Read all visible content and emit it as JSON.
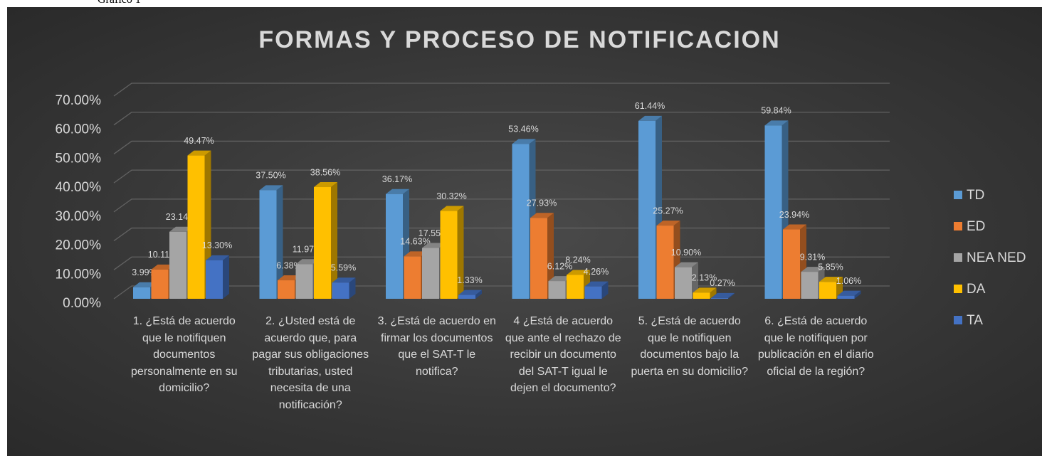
{
  "caption": "Gráfico 1",
  "chart_data": {
    "type": "bar3d",
    "title": "FORMAS Y PROCESO DE NOTIFICACION",
    "categories": [
      "1. ¿Está de acuerdo que le notifiquen documentos personalmente en su domicilio?",
      "2. ¿Usted está de acuerdo que, para pagar sus obligaciones tributarias, usted necesita de una notificación?",
      "3. ¿Está de acuerdo en firmar los documentos que el SAT-T le notifica?",
      "4 ¿Está de acuerdo que ante el rechazo de recibir un documento del SAT-T igual le dejen el documento?",
      "5. ¿Está de acuerdo que le notifiquen documentos bajo la puerta en su domicilio?",
      "6. ¿Está de acuerdo que le notifiquen por publicación en el diario oficial de la región?"
    ],
    "series": [
      {
        "name": "TD",
        "color": "#5b9bd5",
        "values": [
          3.99,
          37.5,
          36.17,
          53.46,
          61.44,
          59.84
        ],
        "value_labels": [
          "3.99%",
          "37.50%",
          "36.17%",
          "53.46%",
          "61.44%",
          "59.84%"
        ]
      },
      {
        "name": "ED",
        "color": "#ed7d31",
        "values": [
          10.11,
          6.38,
          14.63,
          27.93,
          25.27,
          23.94
        ],
        "value_labels": [
          "10.11%",
          "6.38%",
          "14.63%",
          "27.93%",
          "25.27%",
          "23.94%"
        ]
      },
      {
        "name": "NEA NED",
        "color": "#a5a5a5",
        "values": [
          23.14,
          11.97,
          17.55,
          6.12,
          10.9,
          9.31
        ],
        "value_labels": [
          "23.14%",
          "11.97%",
          "17.55%",
          "6.12%",
          "10.90%",
          "9.31%"
        ]
      },
      {
        "name": "DA",
        "color": "#ffc000",
        "values": [
          49.47,
          38.56,
          30.32,
          8.24,
          2.13,
          5.85
        ],
        "value_labels": [
          "49.47%",
          "38.56%",
          "30.32%",
          "8.24%",
          "2.13%",
          "5.85%"
        ]
      },
      {
        "name": "TA",
        "color": "#4472c4",
        "values": [
          13.3,
          5.59,
          1.33,
          4.26,
          0.27,
          1.06
        ],
        "value_labels": [
          "13.30%",
          "5.59%",
          "1.33%",
          "4.26%",
          "0.27%",
          "1.06%"
        ]
      }
    ],
    "ylim": [
      0,
      70
    ],
    "yticks": [
      {
        "value": 0,
        "label": "0.00%"
      },
      {
        "value": 10,
        "label": "10.00%"
      },
      {
        "value": 20,
        "label": "20.00%"
      },
      {
        "value": 30,
        "label": "30.00%"
      },
      {
        "value": 40,
        "label": "40.00%"
      },
      {
        "value": 50,
        "label": "50.00%"
      },
      {
        "value": 60,
        "label": "60.00%"
      },
      {
        "value": 70,
        "label": "70.00%"
      }
    ],
    "grid": true,
    "legend": "right"
  }
}
